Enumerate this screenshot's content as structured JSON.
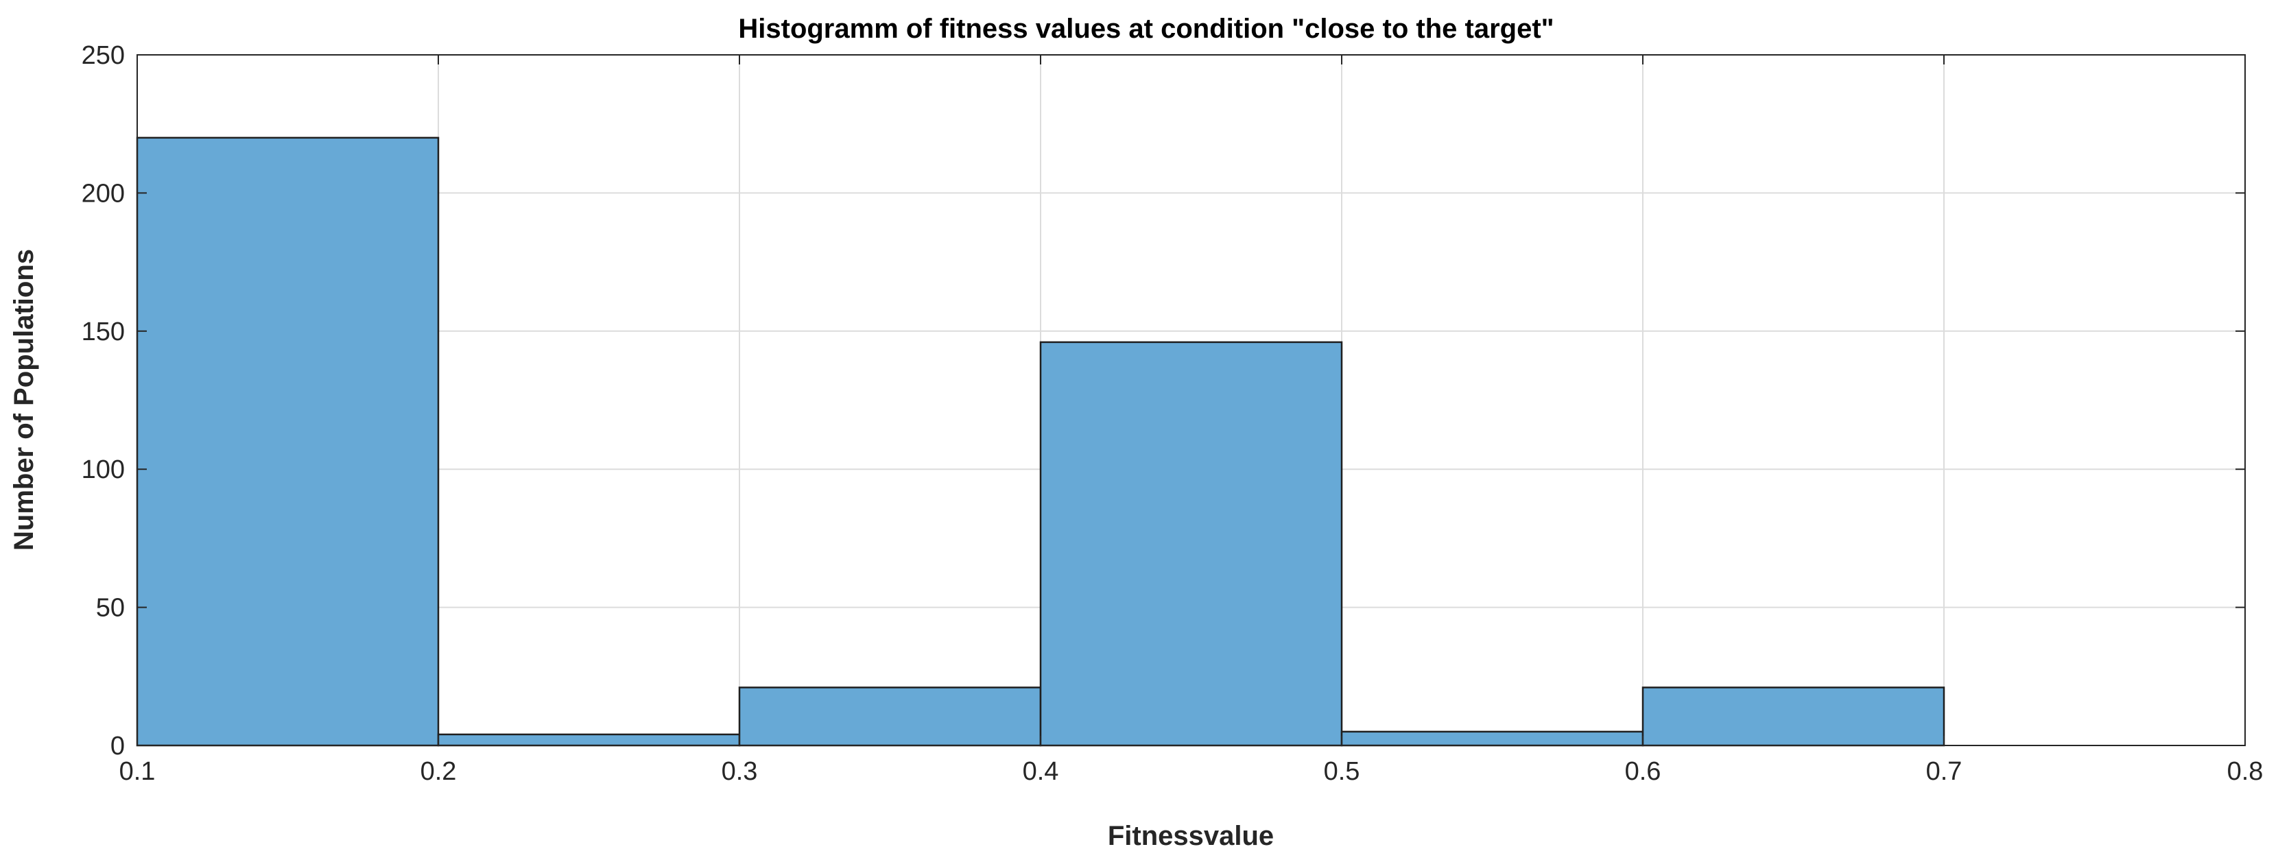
{
  "chart_data": {
    "type": "bar",
    "title": "Histogramm of fitness values at condition \"close to the target\"",
    "xlabel": "Fitnessvalue",
    "ylabel": "Number of Populations",
    "xlim": [
      0.1,
      0.8
    ],
    "ylim": [
      0,
      250
    ],
    "xticks": [
      "0.1",
      "0.2",
      "0.3",
      "0.4",
      "0.5",
      "0.6",
      "0.7",
      "0.8"
    ],
    "yticks": [
      "0",
      "50",
      "100",
      "150",
      "200",
      "250"
    ],
    "bins": [
      {
        "x0": 0.1,
        "x1": 0.2,
        "value": 220
      },
      {
        "x0": 0.2,
        "x1": 0.3,
        "value": 4
      },
      {
        "x0": 0.3,
        "x1": 0.4,
        "value": 21
      },
      {
        "x0": 0.4,
        "x1": 0.5,
        "value": 146
      },
      {
        "x0": 0.5,
        "x1": 0.6,
        "value": 5
      },
      {
        "x0": 0.6,
        "x1": 0.7,
        "value": 21
      }
    ],
    "grid": true,
    "colors": {
      "bar_fill": "#67a9d6",
      "bar_edge": "#1f1f1f",
      "grid": "#dcdcdc",
      "axis": "#262626"
    }
  }
}
